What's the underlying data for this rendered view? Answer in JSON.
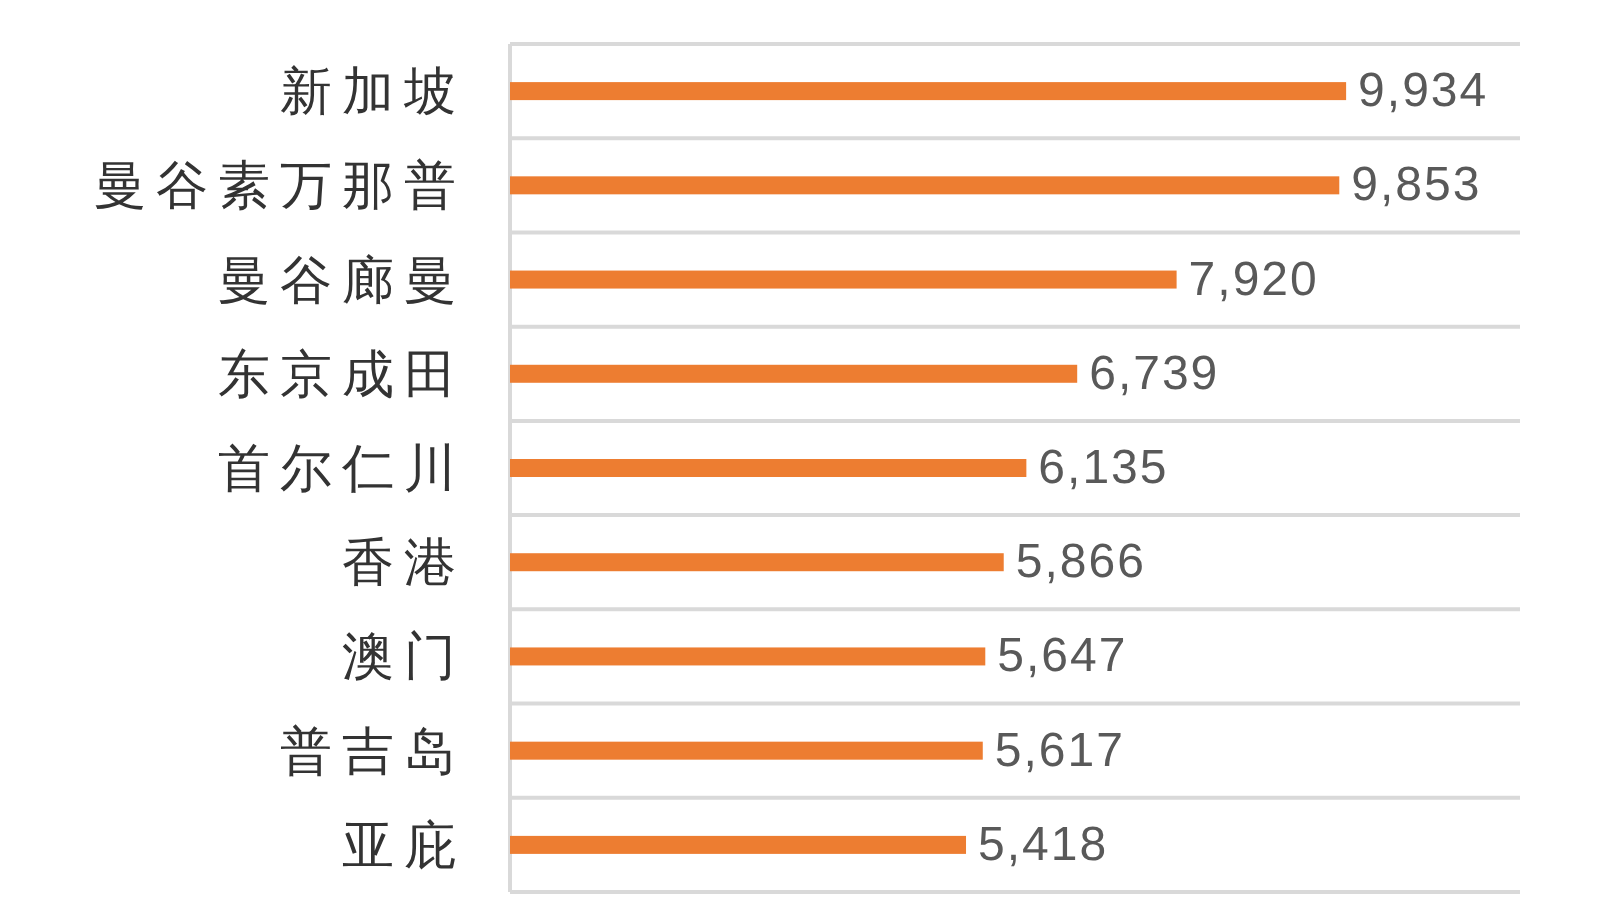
{
  "chart_data": {
    "type": "bar",
    "orientation": "horizontal",
    "categories": [
      "新加坡",
      "曼谷素万那普",
      "曼谷廊曼",
      "东京成田",
      "首尔仁川",
      "香港",
      "澳门",
      "普吉岛",
      "亚庇"
    ],
    "values": [
      9934,
      9853,
      7920,
      6739,
      6135,
      5866,
      5647,
      5617,
      5418
    ],
    "value_labels": [
      "9,934",
      "9,853",
      "7,920",
      "6,739",
      "6,135",
      "5,866",
      "5,647",
      "5,617",
      "5,418"
    ],
    "color": "#ed7d31",
    "xlim": [
      0,
      12000
    ],
    "grid": "y",
    "tick_labels": "y"
  }
}
